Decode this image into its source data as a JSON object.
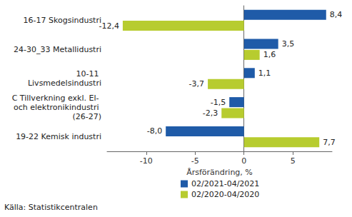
{
  "chart_data": {
    "type": "bar",
    "orientation": "horizontal",
    "categories": [
      "16-17 Skogsindustri",
      "24-30_33 Metallidustri",
      "10-11 Livsmedelsindustri",
      "C Tillverkning exkl. El- och elektronikindustri (26-27)",
      "19-22 Kemisk industri"
    ],
    "series": [
      {
        "name": "02/2021-04/2021",
        "color": "#1f5ba8",
        "values": [
          8.4,
          3.5,
          1.1,
          -1.5,
          -8.0
        ],
        "value_labels": [
          "8,4",
          "3,5",
          "1,1",
          "-1,5",
          "-8,0"
        ]
      },
      {
        "name": "02/2020-04/2020",
        "color": "#b7cc2f",
        "values": [
          -12.4,
          1.6,
          -3.7,
          -2.3,
          7.7
        ],
        "value_labels": [
          "-12,4",
          "1,6",
          "-3,7",
          "-2,3",
          "7,7"
        ]
      }
    ],
    "xlabel": "Årsförändring, %",
    "xlim": [
      -14,
      9
    ],
    "xticks": [
      -10,
      -5,
      0,
      5
    ],
    "grid": false,
    "legend": "bottom",
    "data_labels": true,
    "annotations": [
      "Källa: Statistikcentralen"
    ]
  }
}
